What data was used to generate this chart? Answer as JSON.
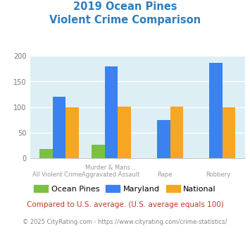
{
  "title_line1": "2019 Ocean Pines",
  "title_line2": "Violent Crime Comparison",
  "cat_top": [
    "",
    "Murder & Mans...",
    "",
    ""
  ],
  "cat_bot": [
    "All Violent Crime",
    "Aggravated Assault",
    "Rape",
    "Robbery"
  ],
  "ocean_pines": [
    19,
    27,
    0,
    0
  ],
  "maryland": [
    120,
    179,
    75,
    187
  ],
  "national": [
    100,
    101,
    101,
    100
  ],
  "ocean_pines_color": "#7bc043",
  "maryland_color": "#3b82f0",
  "national_color": "#f5a623",
  "title_color": "#2e7ebf",
  "bg_color": "#ddeef4",
  "ylim": [
    0,
    200
  ],
  "yticks": [
    0,
    50,
    100,
    150,
    200
  ],
  "bar_width": 0.25,
  "footnote1": "Compared to U.S. average. (U.S. average equals 100)",
  "footnote2": "© 2025 CityRating.com - https://www.cityrating.com/crime-statistics/",
  "footnote1_color": "#c0392b",
  "footnote2_color": "#888888",
  "legend_labels": [
    "Ocean Pines",
    "Maryland",
    "National"
  ]
}
